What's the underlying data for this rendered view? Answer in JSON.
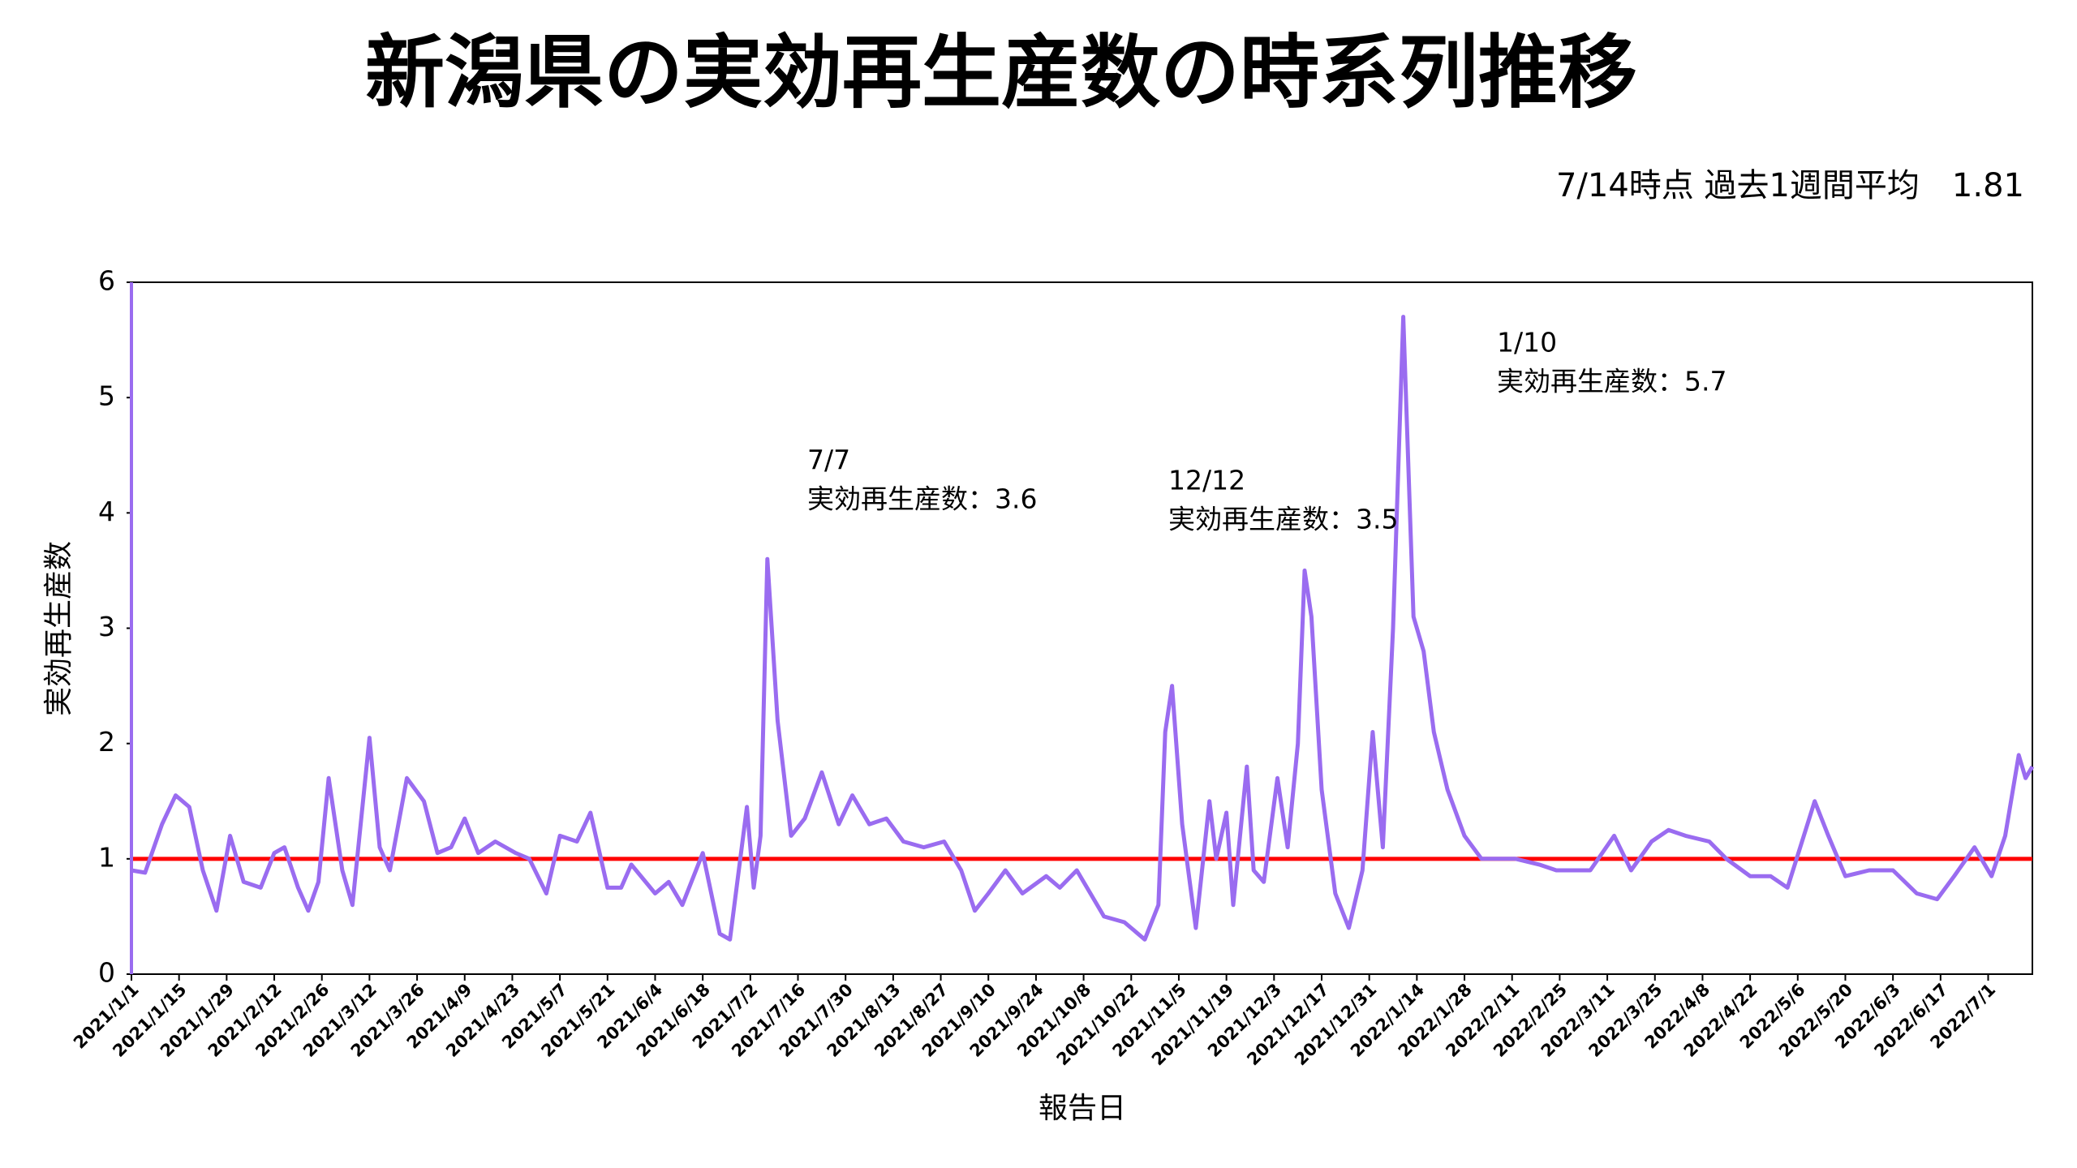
{
  "chart_data": {
    "type": "line",
    "title": "新潟県の実効再生産数の時系列推移",
    "subtitle": "7/14時点 過去1週間平均　1.81",
    "x_label": "報告日",
    "y_label": "実効再生産数",
    "xlim": [
      "2021/1/1",
      "2022/7/14"
    ],
    "xticks": [
      "2021/1/1",
      "2021/1/15",
      "2021/1/29",
      "2021/2/12",
      "2021/2/26",
      "2021/3/12",
      "2021/3/26",
      "2021/4/9",
      "2021/4/23",
      "2021/5/7",
      "2021/5/21",
      "2021/6/4",
      "2021/6/18",
      "2021/7/2",
      "2021/7/16",
      "2021/7/30",
      "2021/8/13",
      "2021/8/27",
      "2021/9/10",
      "2021/9/24",
      "2021/10/8",
      "2021/10/22",
      "2021/11/5",
      "2021/11/19",
      "2021/12/3",
      "2021/12/17",
      "2021/12/31",
      "2022/1/14",
      "2022/1/28",
      "2022/2/11",
      "2022/2/25",
      "2022/3/11",
      "2022/3/25",
      "2022/4/8",
      "2022/4/22",
      "2022/5/6",
      "2022/5/20",
      "2022/6/3",
      "2022/6/17",
      "2022/7/1"
    ],
    "ylim": [
      0,
      6
    ],
    "yticks": [
      0,
      1,
      2,
      3,
      4,
      5,
      6
    ],
    "grid": false,
    "reference_line": {
      "value": 1,
      "color": "#ff0000"
    },
    "series": [
      {
        "color": "#9a6cf0",
        "x": [
          "2021/1/1",
          "2021/1/5",
          "2021/1/10",
          "2021/1/14",
          "2021/1/18",
          "2021/1/22",
          "2021/1/26",
          "2021/1/30",
          "2021/2/3",
          "2021/2/8",
          "2021/2/12",
          "2021/2/15",
          "2021/2/19",
          "2021/2/22",
          "2021/2/25",
          "2021/2/28",
          "2021/3/4",
          "2021/3/7",
          "2021/3/12",
          "2021/3/15",
          "2021/3/18",
          "2021/3/23",
          "2021/3/28",
          "2021/4/1",
          "2021/4/5",
          "2021/4/9",
          "2021/4/13",
          "2021/4/18",
          "2021/4/24",
          "2021/4/28",
          "2021/5/3",
          "2021/5/7",
          "2021/5/12",
          "2021/5/16",
          "2021/5/21",
          "2021/5/25",
          "2021/5/28",
          "2021/6/4",
          "2021/6/8",
          "2021/6/12",
          "2021/6/18",
          "2021/6/23",
          "2021/6/26",
          "2021/7/1",
          "2021/7/3",
          "2021/7/5",
          "2021/7/7",
          "2021/7/10",
          "2021/7/14",
          "2021/7/18",
          "2021/7/23",
          "2021/7/28",
          "2021/8/1",
          "2021/8/6",
          "2021/8/11",
          "2021/8/16",
          "2021/8/22",
          "2021/8/28",
          "2021/9/2",
          "2021/9/6",
          "2021/9/10",
          "2021/9/15",
          "2021/9/20",
          "2021/9/27",
          "2021/10/1",
          "2021/10/6",
          "2021/10/10",
          "2021/10/14",
          "2021/10/20",
          "2021/10/26",
          "2021/10/30",
          "2021/11/1",
          "2021/11/3",
          "2021/11/6",
          "2021/11/10",
          "2021/11/14",
          "2021/11/16",
          "2021/11/19",
          "2021/11/21",
          "2021/11/25",
          "2021/11/27",
          "2021/11/30",
          "2021/12/4",
          "2021/12/7",
          "2021/12/10",
          "2021/12/12",
          "2021/12/14",
          "2021/12/17",
          "2021/12/21",
          "2021/12/25",
          "2021/12/29",
          "2022/1/1",
          "2022/1/4",
          "2022/1/7",
          "2022/1/10",
          "2022/1/13",
          "2022/1/16",
          "2022/1/19",
          "2022/1/23",
          "2022/1/28",
          "2022/2/2",
          "2022/2/7",
          "2022/2/12",
          "2022/2/19",
          "2022/2/24",
          "2022/3/1",
          "2022/3/6",
          "2022/3/13",
          "2022/3/18",
          "2022/3/24",
          "2022/3/29",
          "2022/4/3",
          "2022/4/10",
          "2022/4/15",
          "2022/4/22",
          "2022/4/28",
          "2022/5/3",
          "2022/5/11",
          "2022/5/15",
          "2022/5/20",
          "2022/5/27",
          "2022/6/3",
          "2022/6/10",
          "2022/6/16",
          "2022/6/21",
          "2022/6/27",
          "2022/7/2",
          "2022/7/6",
          "2022/7/10",
          "2022/7/12",
          "2022/7/14"
        ],
        "values": [
          0.9,
          0.88,
          1.3,
          1.55,
          1.45,
          0.9,
          0.55,
          1.2,
          0.8,
          0.75,
          1.05,
          1.1,
          0.75,
          0.55,
          0.8,
          1.7,
          0.9,
          0.6,
          2.05,
          1.1,
          0.9,
          1.7,
          1.5,
          1.05,
          1.1,
          1.35,
          1.05,
          1.15,
          1.05,
          1.0,
          0.7,
          1.2,
          1.15,
          1.4,
          0.75,
          0.75,
          0.95,
          0.7,
          0.8,
          0.6,
          1.05,
          0.35,
          0.3,
          1.45,
          0.75,
          1.2,
          3.6,
          2.2,
          1.2,
          1.35,
          1.75,
          1.3,
          1.55,
          1.3,
          1.35,
          1.15,
          1.1,
          1.15,
          0.9,
          0.55,
          0.7,
          0.9,
          0.7,
          0.85,
          0.75,
          0.9,
          0.7,
          0.5,
          0.45,
          0.3,
          0.6,
          2.1,
          2.5,
          1.3,
          0.4,
          1.5,
          1.0,
          1.4,
          0.6,
          1.8,
          0.9,
          0.8,
          1.7,
          1.1,
          2.0,
          3.5,
          3.1,
          1.6,
          0.7,
          0.4,
          0.9,
          2.1,
          1.1,
          3.0,
          5.7,
          3.1,
          2.8,
          2.1,
          1.6,
          1.2,
          1.0,
          1.0,
          1.0,
          0.95,
          0.9,
          0.9,
          0.9,
          1.2,
          0.9,
          1.15,
          1.25,
          1.2,
          1.15,
          1.0,
          0.85,
          0.85,
          0.75,
          1.5,
          1.2,
          0.85,
          0.9,
          0.9,
          0.7,
          0.65,
          0.85,
          1.1,
          0.85,
          1.2,
          1.9,
          1.7,
          1.8
        ]
      }
    ],
    "annotations": [
      {
        "lines": [
          "7/7",
          "実効再生産数：3.6"
        ]
      },
      {
        "lines": [
          "12/12",
          "実効再生産数：3.5"
        ]
      },
      {
        "lines": [
          "1/10",
          "実効再生産数：5.7"
        ]
      }
    ]
  }
}
